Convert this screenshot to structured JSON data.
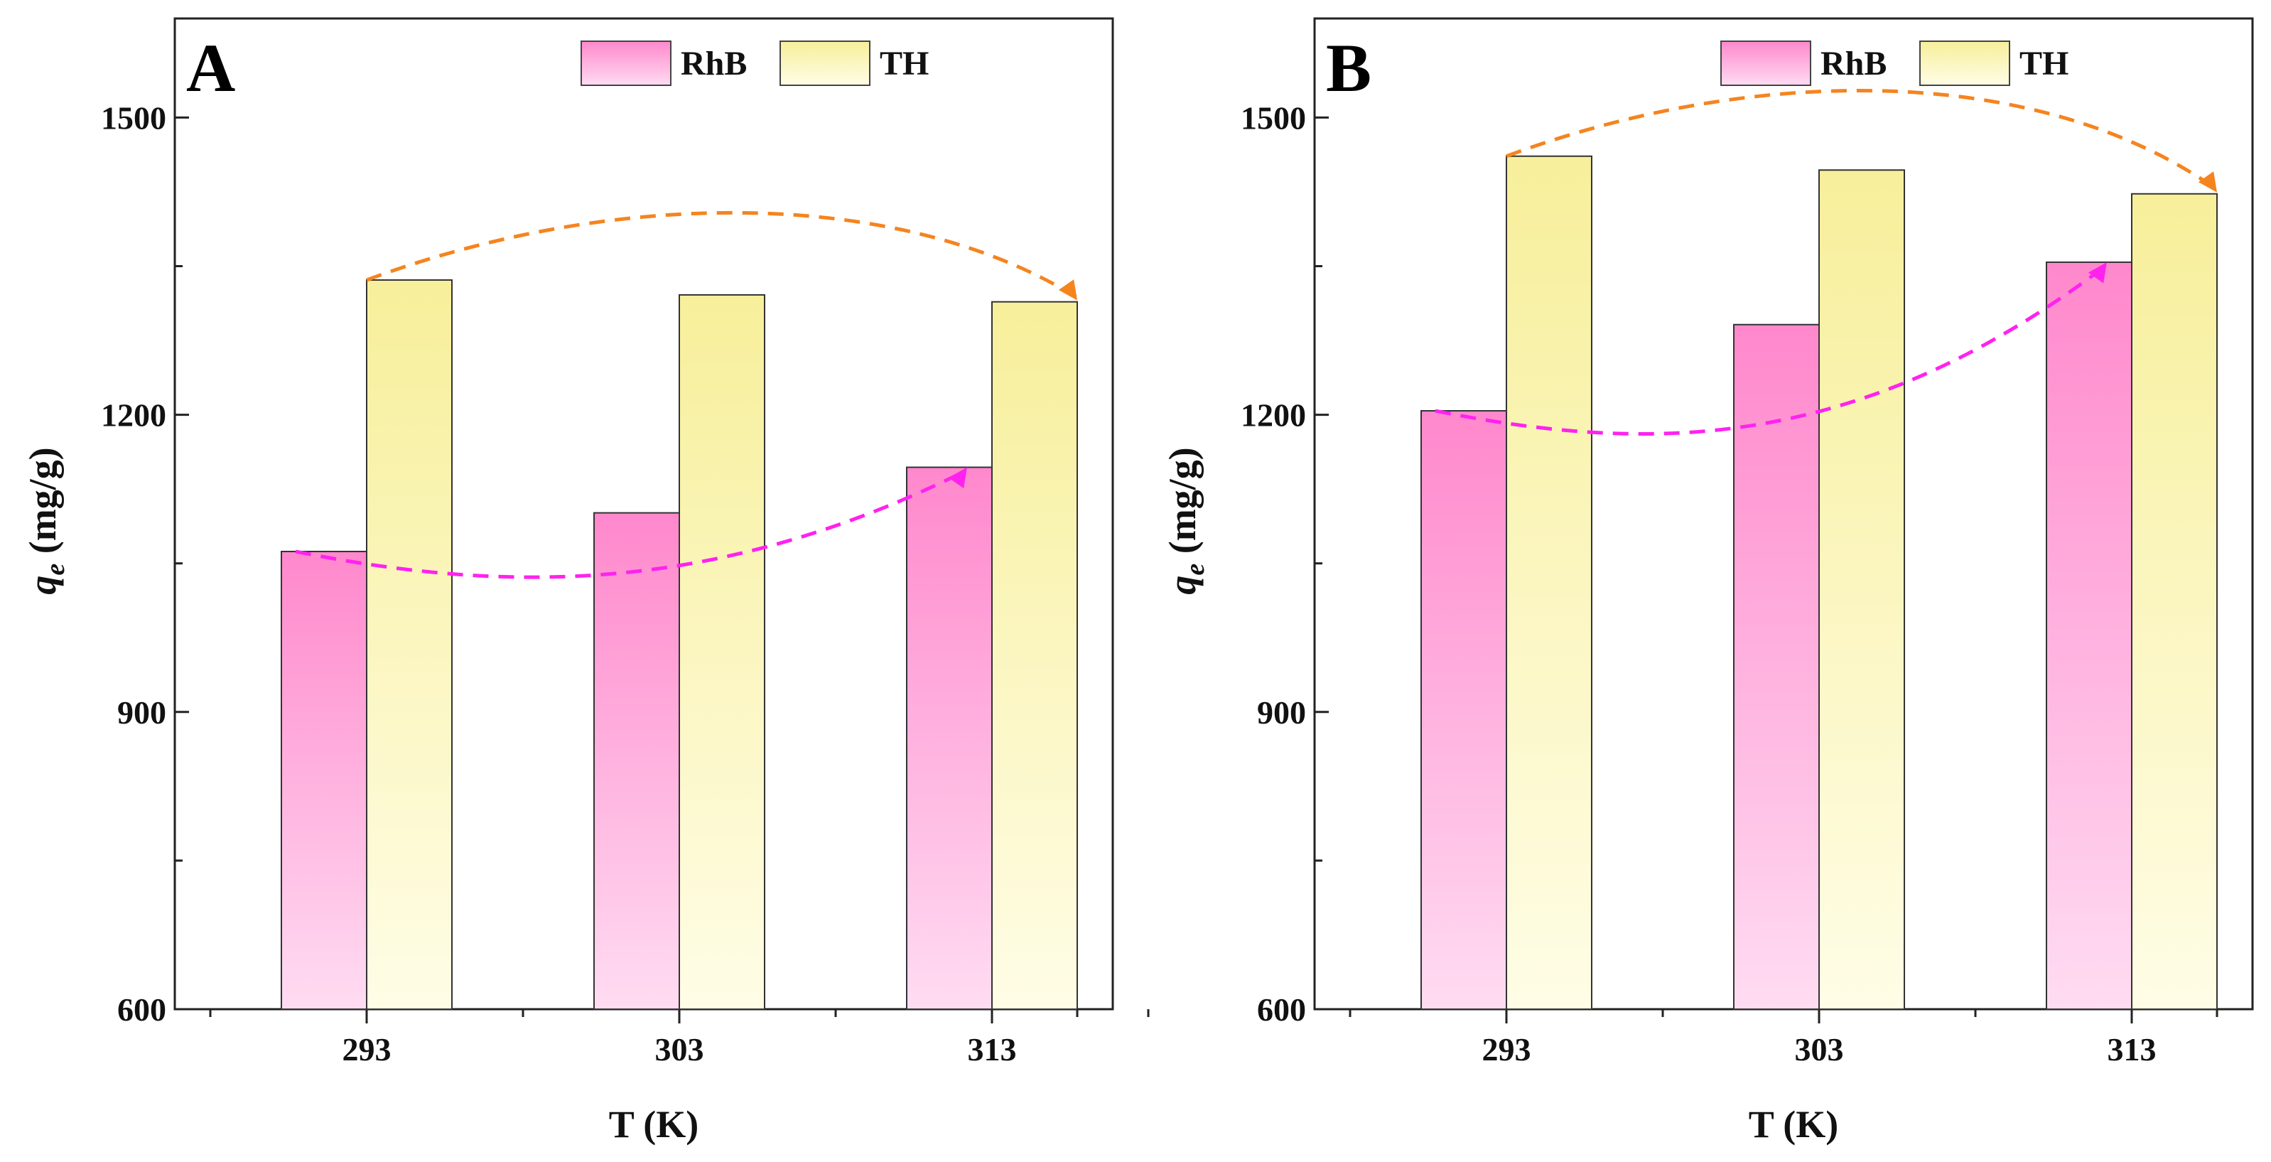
{
  "chart_data": [
    {
      "type": "bar",
      "panel_label": "A",
      "categories": [
        "293",
        "303",
        "313"
      ],
      "xlabel": "T (K)",
      "ylabel_main": "q",
      "ylabel_sub": "e",
      "ylabel_unit": " (mg/g)",
      "ylim": [
        600,
        1600
      ],
      "yticks": [
        600,
        900,
        1200,
        1500
      ],
      "grid": false,
      "legend_position": "top-right",
      "series": [
        {
          "name": "RhB",
          "values": [
            1062,
            1101,
            1147
          ],
          "color_top": "#ff88cc",
          "color_bottom": "#ffdcf2"
        },
        {
          "name": "TH",
          "values": [
            1336,
            1321,
            1314
          ],
          "color_top": "#f7ef9a",
          "color_bottom": "#fffde6"
        }
      ],
      "annotations": [
        {
          "series": "TH",
          "from_index": 0,
          "to_index": 2,
          "color": "#f5841f",
          "style": "dashed arrow"
        },
        {
          "series": "RhB",
          "from_index": 0,
          "to_index": 2,
          "color": "#ff22ee",
          "style": "dashed arrow"
        }
      ]
    },
    {
      "type": "bar",
      "panel_label": "B",
      "categories": [
        "293",
        "303",
        "313"
      ],
      "xlabel": "T (K)",
      "ylabel_main": "q",
      "ylabel_sub": "e",
      "ylabel_unit": " (mg/g)",
      "ylim": [
        600,
        1600
      ],
      "yticks": [
        600,
        900,
        1200,
        1500
      ],
      "grid": false,
      "legend_position": "top-right",
      "series": [
        {
          "name": "RhB",
          "values": [
            1204,
            1291,
            1354
          ],
          "color_top": "#ff88cc",
          "color_bottom": "#ffdcf2"
        },
        {
          "name": "TH",
          "values": [
            1461,
            1447,
            1423
          ],
          "color_top": "#f7ef9a",
          "color_bottom": "#fffde6"
        }
      ],
      "annotations": [
        {
          "series": "TH",
          "from_index": 0,
          "to_index": 2,
          "color": "#f5841f",
          "style": "dashed arrow"
        },
        {
          "series": "RhB",
          "from_index": 0,
          "to_index": 2,
          "color": "#ff22ee",
          "style": "dashed arrow"
        }
      ]
    }
  ]
}
